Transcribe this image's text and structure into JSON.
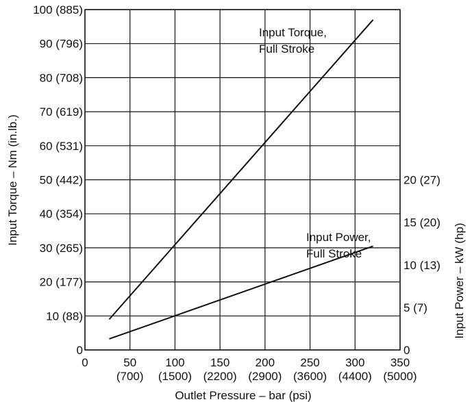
{
  "chart_data": {
    "type": "line",
    "title": "",
    "xlabel": "Outlet Pressure – bar (psi)",
    "ylabel_left": "Input Torque – Nm (in.lb.)",
    "ylabel_right": "Input Power – kW (hp)",
    "xlim": [
      0,
      350
    ],
    "ylim_left": [
      0,
      100
    ],
    "ylim_right": [
      0,
      20
    ],
    "grid": true,
    "x_ticks": [
      {
        "value": 0,
        "label": "0",
        "sub": ""
      },
      {
        "value": 50,
        "label": "50",
        "sub": "(700)"
      },
      {
        "value": 100,
        "label": "100",
        "sub": "(1500)"
      },
      {
        "value": 150,
        "label": "150",
        "sub": "(2200)"
      },
      {
        "value": 200,
        "label": "200",
        "sub": "(2900)"
      },
      {
        "value": 250,
        "label": "250",
        "sub": "(3600)"
      },
      {
        "value": 300,
        "label": "300",
        "sub": "(4400)"
      },
      {
        "value": 350,
        "label": "350",
        "sub": "(5000)"
      }
    ],
    "y_left_ticks": [
      {
        "value": 0,
        "label": "0"
      },
      {
        "value": 10,
        "label": "10 (88)"
      },
      {
        "value": 20,
        "label": "20 (177)"
      },
      {
        "value": 30,
        "label": "30 (265)"
      },
      {
        "value": 40,
        "label": "40 (354)"
      },
      {
        "value": 50,
        "label": "50 (442)"
      },
      {
        "value": 60,
        "label": "60 (531)"
      },
      {
        "value": 70,
        "label": "70 (619)"
      },
      {
        "value": 80,
        "label": "80 (708)"
      },
      {
        "value": 90,
        "label": "90 (796)"
      },
      {
        "value": 100,
        "label": "100 (885)"
      }
    ],
    "y_right_ticks": [
      {
        "value": 0,
        "label": "0"
      },
      {
        "value": 5,
        "label": "5 (7)"
      },
      {
        "value": 10,
        "label": "10 (13)"
      },
      {
        "value": 15,
        "label": "15 (20)"
      },
      {
        "value": 20,
        "label": "20 (27)"
      }
    ],
    "series": [
      {
        "name": "Input Torque, Full Stroke",
        "axis": "left",
        "x": [
          27,
          320
        ],
        "values": [
          9,
          97
        ],
        "annotation": [
          "Input Torque,",
          "Full Stroke"
        ]
      },
      {
        "name": "Input Power, Full Stroke",
        "axis": "right",
        "x": [
          27,
          320
        ],
        "values": [
          1.3,
          12.2
        ],
        "annotation": [
          "Input Power,",
          "Full Stroke"
        ]
      }
    ]
  }
}
